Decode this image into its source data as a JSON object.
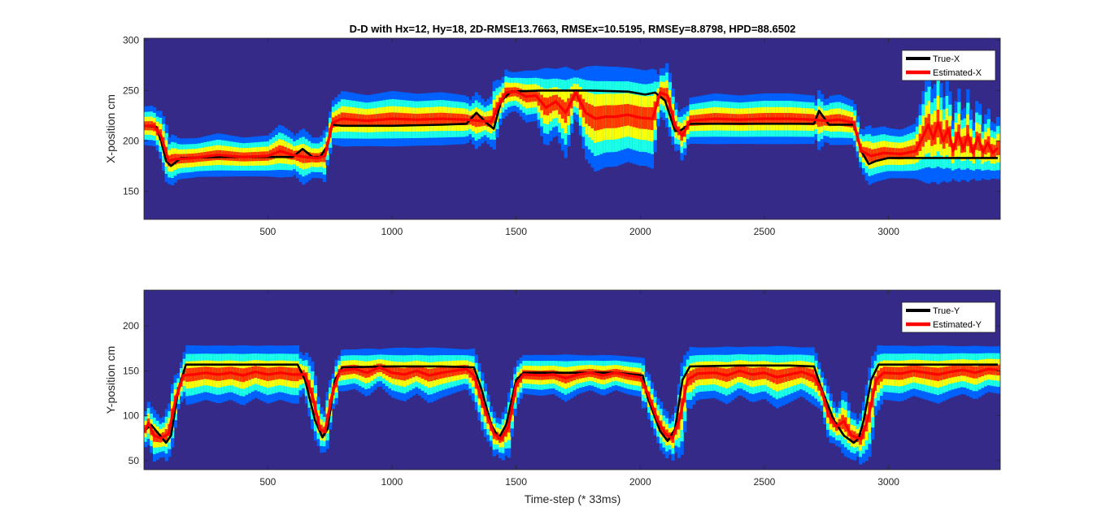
{
  "chart_data": [
    {
      "type": "line",
      "title": "D-D with Hx=12, Hy=18, 2D-RMSE13.7663, RMSEx=10.5195, RMSEy=8.8798, HPD=88.6502",
      "xlabel": "",
      "ylabel": "X-position cm",
      "xlim": [
        1,
        3450
      ],
      "ylim": [
        122,
        302
      ],
      "xticks": [
        500,
        1000,
        1500,
        2000,
        2500,
        3000
      ],
      "yticks": [
        150,
        200,
        250,
        300
      ],
      "background": "heatmap (posterior density)",
      "legend_position": "top-right",
      "series": [
        {
          "name": "True-X",
          "color": "#000000",
          "points": [
            [
              1,
              215
            ],
            [
              50,
              214
            ],
            [
              70,
              200
            ],
            [
              90,
              180
            ],
            [
              110,
              175
            ],
            [
              150,
              183
            ],
            [
              300,
              184
            ],
            [
              450,
              184
            ],
            [
              600,
              184
            ],
            [
              640,
              192
            ],
            [
              680,
              184
            ],
            [
              710,
              184
            ],
            [
              740,
              195
            ],
            [
              760,
              216
            ],
            [
              800,
              215
            ],
            [
              1000,
              215
            ],
            [
              1200,
              216
            ],
            [
              1300,
              217
            ],
            [
              1340,
              228
            ],
            [
              1380,
              218
            ],
            [
              1410,
              212
            ],
            [
              1440,
              240
            ],
            [
              1480,
              249
            ],
            [
              1600,
              250
            ],
            [
              1800,
              250
            ],
            [
              1950,
              249
            ],
            [
              2020,
              246
            ],
            [
              2060,
              248
            ],
            [
              2100,
              240
            ],
            [
              2140,
              210
            ],
            [
              2160,
              210
            ],
            [
              2200,
              217
            ],
            [
              2400,
              217
            ],
            [
              2600,
              217
            ],
            [
              2700,
              217
            ],
            [
              2720,
              230
            ],
            [
              2760,
              216
            ],
            [
              2860,
              216
            ],
            [
              2890,
              190
            ],
            [
              2920,
              177
            ],
            [
              2950,
              180
            ],
            [
              3000,
              183
            ],
            [
              3200,
              183
            ],
            [
              3440,
              183
            ]
          ]
        },
        {
          "name": "Estimated-X",
          "color": "#ff0000",
          "points": [
            [
              1,
              215
            ],
            [
              40,
              215
            ],
            [
              70,
              205
            ],
            [
              100,
              180
            ],
            [
              130,
              182
            ],
            [
              200,
              183
            ],
            [
              300,
              186
            ],
            [
              400,
              184
            ],
            [
              500,
              185
            ],
            [
              550,
              190
            ],
            [
              600,
              186
            ],
            [
              650,
              184
            ],
            [
              700,
              183
            ],
            [
              730,
              185
            ],
            [
              760,
              218
            ],
            [
              800,
              222
            ],
            [
              900,
              220
            ],
            [
              1000,
              222
            ],
            [
              1100,
              221
            ],
            [
              1200,
              222
            ],
            [
              1300,
              221
            ],
            [
              1400,
              219
            ],
            [
              1430,
              236
            ],
            [
              1460,
              248
            ],
            [
              1500,
              249
            ],
            [
              1540,
              244
            ],
            [
              1580,
              245
            ],
            [
              1620,
              233
            ],
            [
              1660,
              239
            ],
            [
              1700,
              228
            ],
            [
              1740,
              248
            ],
            [
              1780,
              228
            ],
            [
              1820,
              222
            ],
            [
              1860,
              224
            ],
            [
              1900,
              224
            ],
            [
              1950,
              226
            ],
            [
              2000,
              223
            ],
            [
              2050,
              222
            ],
            [
              2080,
              248
            ],
            [
              2110,
              245
            ],
            [
              2140,
              215
            ],
            [
              2170,
              205
            ],
            [
              2200,
              220
            ],
            [
              2300,
              222
            ],
            [
              2400,
              221
            ],
            [
              2500,
              222
            ],
            [
              2600,
              222
            ],
            [
              2700,
              221
            ],
            [
              2750,
              220
            ],
            [
              2800,
              221
            ],
            [
              2860,
              218
            ],
            [
              2890,
              190
            ],
            [
              2930,
              185
            ],
            [
              2980,
              188
            ],
            [
              3050,
              187
            ],
            [
              3110,
              190
            ],
            [
              3140,
              205
            ],
            [
              3160,
              216
            ],
            [
              3180,
              202
            ],
            [
              3200,
              218
            ],
            [
              3220,
              200
            ],
            [
              3240,
              212
            ],
            [
              3260,
              190
            ],
            [
              3280,
              208
            ],
            [
              3300,
              192
            ],
            [
              3320,
              206
            ],
            [
              3340,
              188
            ],
            [
              3360,
              204
            ],
            [
              3380,
              189
            ],
            [
              3400,
              198
            ],
            [
              3420,
              188
            ],
            [
              3440,
              193
            ]
          ]
        }
      ]
    },
    {
      "type": "line",
      "title": "",
      "xlabel": "Time-step (* 33ms)",
      "ylabel": "Y-position cm",
      "xlim": [
        1,
        3450
      ],
      "ylim": [
        40,
        240
      ],
      "xticks": [
        500,
        1000,
        1500,
        2000,
        2500,
        3000
      ],
      "yticks": [
        50,
        100,
        150,
        200
      ],
      "background": "heatmap (posterior density)",
      "legend_position": "top-right",
      "series": [
        {
          "name": "True-Y",
          "color": "#000000",
          "points": [
            [
              1,
              83
            ],
            [
              30,
              90
            ],
            [
              60,
              80
            ],
            [
              90,
              70
            ],
            [
              110,
              78
            ],
            [
              140,
              130
            ],
            [
              170,
              157
            ],
            [
              300,
              157
            ],
            [
              500,
              157
            ],
            [
              620,
              157
            ],
            [
              650,
              140
            ],
            [
              690,
              95
            ],
            [
              720,
              76
            ],
            [
              740,
              85
            ],
            [
              770,
              140
            ],
            [
              800,
              154
            ],
            [
              1000,
              155
            ],
            [
              1200,
              155
            ],
            [
              1330,
              154
            ],
            [
              1360,
              130
            ],
            [
              1400,
              90
            ],
            [
              1430,
              75
            ],
            [
              1460,
              90
            ],
            [
              1500,
              140
            ],
            [
              1530,
              148
            ],
            [
              1700,
              148
            ],
            [
              1900,
              148
            ],
            [
              2010,
              145
            ],
            [
              2030,
              120
            ],
            [
              2080,
              83
            ],
            [
              2110,
              72
            ],
            [
              2140,
              85
            ],
            [
              2170,
              140
            ],
            [
              2200,
              155
            ],
            [
              2400,
              156
            ],
            [
              2600,
              156
            ],
            [
              2700,
              155
            ],
            [
              2730,
              130
            ],
            [
              2780,
              95
            ],
            [
              2820,
              78
            ],
            [
              2860,
              70
            ],
            [
              2880,
              75
            ],
            [
              2900,
              95
            ],
            [
              2930,
              140
            ],
            [
              2960,
              157
            ],
            [
              3200,
              157
            ],
            [
              3440,
              157
            ]
          ]
        },
        {
          "name": "Estimated-Y",
          "color": "#ff0000",
          "points": [
            [
              1,
              82
            ],
            [
              20,
              92
            ],
            [
              40,
              78
            ],
            [
              70,
              75
            ],
            [
              100,
              80
            ],
            [
              130,
              120
            ],
            [
              160,
              145
            ],
            [
              200,
              146
            ],
            [
              250,
              148
            ],
            [
              300,
              146
            ],
            [
              350,
              148
            ],
            [
              400,
              145
            ],
            [
              450,
              149
            ],
            [
              500,
              146
            ],
            [
              550,
              148
            ],
            [
              600,
              146
            ],
            [
              650,
              146
            ],
            [
              680,
              122
            ],
            [
              710,
              85
            ],
            [
              730,
              82
            ],
            [
              760,
              125
            ],
            [
              790,
              150
            ],
            [
              850,
              152
            ],
            [
              900,
              148
            ],
            [
              950,
              154
            ],
            [
              1000,
              148
            ],
            [
              1050,
              146
            ],
            [
              1100,
              150
            ],
            [
              1150,
              145
            ],
            [
              1200,
              148
            ],
            [
              1250,
              150
            ],
            [
              1300,
              152
            ],
            [
              1330,
              145
            ],
            [
              1370,
              110
            ],
            [
              1410,
              80
            ],
            [
              1440,
              74
            ],
            [
              1470,
              88
            ],
            [
              1500,
              135
            ],
            [
              1530,
              146
            ],
            [
              1600,
              145
            ],
            [
              1650,
              146
            ],
            [
              1700,
              142
            ],
            [
              1750,
              146
            ],
            [
              1800,
              148
            ],
            [
              1850,
              145
            ],
            [
              1900,
              148
            ],
            [
              1950,
              145
            ],
            [
              2000,
              143
            ],
            [
              2030,
              125
            ],
            [
              2070,
              95
            ],
            [
              2100,
              80
            ],
            [
              2130,
              75
            ],
            [
              2160,
              98
            ],
            [
              2190,
              140
            ],
            [
              2230,
              147
            ],
            [
              2300,
              148
            ],
            [
              2350,
              145
            ],
            [
              2400,
              150
            ],
            [
              2450,
              146
            ],
            [
              2500,
              148
            ],
            [
              2550,
              143
            ],
            [
              2600,
              146
            ],
            [
              2650,
              149
            ],
            [
              2700,
              144
            ],
            [
              2730,
              128
            ],
            [
              2760,
              100
            ],
            [
              2790,
              88
            ],
            [
              2820,
              94
            ],
            [
              2850,
              78
            ],
            [
              2890,
              74
            ],
            [
              2920,
              100
            ],
            [
              2950,
              140
            ],
            [
              2980,
              148
            ],
            [
              3050,
              147
            ],
            [
              3100,
              150
            ],
            [
              3150,
              148
            ],
            [
              3200,
              146
            ],
            [
              3250,
              149
            ],
            [
              3300,
              151
            ],
            [
              3350,
              148
            ],
            [
              3400,
              152
            ],
            [
              3440,
              151
            ]
          ]
        }
      ]
    }
  ]
}
